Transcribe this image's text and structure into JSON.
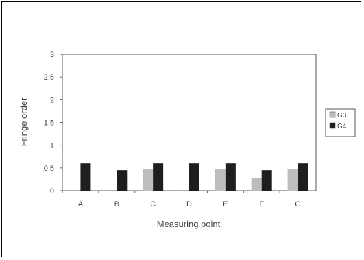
{
  "chart_data": {
    "type": "bar",
    "xlabel": "Measuring point",
    "ylabel": "Fringe order",
    "categories": [
      "A",
      "B",
      "C",
      "D",
      "E",
      "F",
      "G"
    ],
    "ylim": [
      0,
      3
    ],
    "yticks": [
      "0",
      "0.5",
      "1",
      "1.5",
      "2",
      "2.5",
      "3"
    ],
    "grid": false,
    "legend_position": "right",
    "series": [
      {
        "name": "G3",
        "color": "#bdbdbd",
        "values": [
          0,
          0,
          0.47,
          0,
          0.47,
          0.28,
          0.47
        ]
      },
      {
        "name": "G4",
        "color": "#1e1e1e",
        "values": [
          0.6,
          0.45,
          0.6,
          0.6,
          0.6,
          0.45,
          0.6
        ]
      }
    ]
  }
}
